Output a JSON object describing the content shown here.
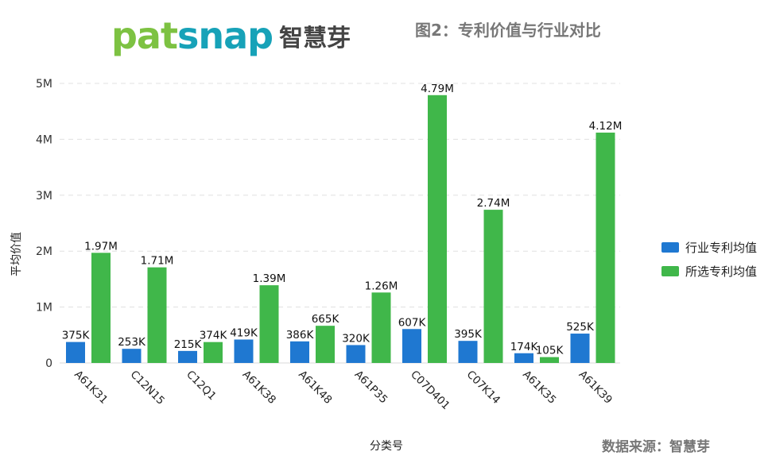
{
  "header": {
    "logo_main": "pat",
    "logo_accent": "snap",
    "logo_cn": "智慧芽",
    "figure_title": "图2：专利价值与行业对比"
  },
  "source_text": "数据来源：智慧芽",
  "colors": {
    "industry": "#1f78d1",
    "selected": "#40b74a",
    "grid": "#e0e0e0"
  },
  "chart_data": {
    "type": "bar",
    "title": "",
    "xlabel": "分类号",
    "ylabel": "平均价值",
    "ylim": [
      0,
      5000000
    ],
    "yticks": [
      0,
      1000000,
      2000000,
      3000000,
      4000000,
      5000000
    ],
    "ytick_labels": [
      "0",
      "1M",
      "2M",
      "3M",
      "4M",
      "5M"
    ],
    "grid": true,
    "legend_position": "right",
    "categories": [
      "A61K31",
      "C12N15",
      "C12Q1",
      "A61K38",
      "A61K48",
      "A61P35",
      "C07D401",
      "C07K14",
      "A61K35",
      "A61K39"
    ],
    "series": [
      {
        "name": "行业专利均值",
        "values": [
          375000,
          253000,
          215000,
          419000,
          386000,
          320000,
          607000,
          395000,
          174000,
          525000
        ],
        "labels": [
          "375K",
          "253K",
          "215K",
          "419K",
          "386K",
          "320K",
          "607K",
          "395K",
          "174K",
          "525K"
        ]
      },
      {
        "name": "所选专利均值",
        "values": [
          1970000,
          1710000,
          374000,
          1390000,
          665000,
          1260000,
          4790000,
          2740000,
          105000,
          4120000
        ],
        "labels": [
          "1.97M",
          "1.71M",
          "374K",
          "1.39M",
          "665K",
          "1.26M",
          "4.79M",
          "2.74M",
          "105K",
          "4.12M"
        ]
      }
    ]
  }
}
